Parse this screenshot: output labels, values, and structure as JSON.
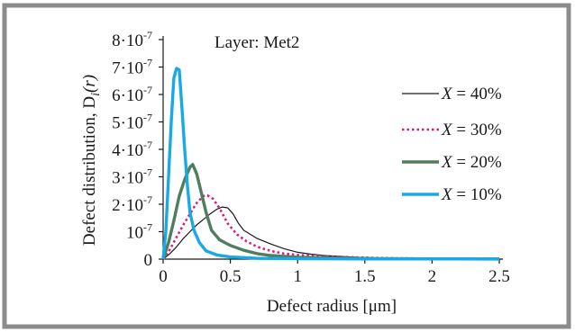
{
  "colors": {
    "frame": "#8c8c8c",
    "x40": "#1a1a1a",
    "x30": "#e0187a",
    "x20": "#4f7d5e",
    "x10": "#19a9e6"
  },
  "chart_data": {
    "type": "line",
    "annotation": "Layer: Met2",
    "ylabel_main": "Defect distribution, D",
    "ylabel_sub": "i",
    "ylabel_arg": "(r)",
    "xlabel": "Defect radius [μm]",
    "xlim": [
      0,
      2.5
    ],
    "ylim": [
      0,
      8e-07
    ],
    "grid": false,
    "legend_position": "right",
    "x_ticks": [
      {
        "v": 0,
        "label": "0"
      },
      {
        "v": 0.5,
        "label": "0.5"
      },
      {
        "v": 1,
        "label": "1"
      },
      {
        "v": 1.5,
        "label": "1.5"
      },
      {
        "v": 2,
        "label": "2"
      },
      {
        "v": 2.5,
        "label": "2.5"
      }
    ],
    "y_ticks": [
      {
        "v": 0,
        "base": "0",
        "exp": ""
      },
      {
        "v": 1e-07,
        "base": "10",
        "exp": "-7"
      },
      {
        "v": 2e-07,
        "base": "2·10",
        "exp": "-7"
      },
      {
        "v": 3e-07,
        "base": "3·10",
        "exp": "-7"
      },
      {
        "v": 4e-07,
        "base": "4·10",
        "exp": "-7"
      },
      {
        "v": 5e-07,
        "base": "5·10",
        "exp": "-7"
      },
      {
        "v": 6e-07,
        "base": "6·10",
        "exp": "-7"
      },
      {
        "v": 7e-07,
        "base": "7·10",
        "exp": "-7"
      },
      {
        "v": 8e-07,
        "base": "8·10",
        "exp": "-7"
      }
    ],
    "series": [
      {
        "name": "X = 40%",
        "legend_var": "X",
        "legend_val": "= 40%",
        "style": "solid",
        "width": 1.2,
        "color_key": "x40",
        "points": [
          [
            0,
            0
          ],
          [
            0.05,
            2e-08
          ],
          [
            0.1,
            4.5e-08
          ],
          [
            0.15,
            7.5e-08
          ],
          [
            0.2,
            1e-07
          ],
          [
            0.25,
            1.25e-07
          ],
          [
            0.3,
            1.45e-07
          ],
          [
            0.35,
            1.65e-07
          ],
          [
            0.4,
            1.82e-07
          ],
          [
            0.44,
            1.9e-07
          ],
          [
            0.48,
            1.87e-07
          ],
          [
            0.52,
            1.65e-07
          ],
          [
            0.56,
            1.3e-07
          ],
          [
            0.6,
            1.05e-07
          ],
          [
            0.65,
            9e-08
          ],
          [
            0.7,
            7.5e-08
          ],
          [
            0.8,
            5.5e-08
          ],
          [
            0.9,
            3.8e-08
          ],
          [
            1.0,
            2.5e-08
          ],
          [
            1.1,
            1.8e-08
          ],
          [
            1.2,
            1.3e-08
          ],
          [
            1.3,
            1e-08
          ],
          [
            1.4,
            8e-09
          ],
          [
            1.5,
            5e-09
          ],
          [
            1.7,
            3e-09
          ],
          [
            2.0,
            2e-09
          ],
          [
            2.5,
            1e-09
          ]
        ]
      },
      {
        "name": "X = 30%",
        "legend_var": "X",
        "legend_val": "= 30%",
        "style": "dotted",
        "width": 2.6,
        "color_key": "x30",
        "points": [
          [
            0,
            0
          ],
          [
            0.05,
            3.5e-08
          ],
          [
            0.1,
            8e-08
          ],
          [
            0.15,
            1.25e-07
          ],
          [
            0.2,
            1.65e-07
          ],
          [
            0.25,
            2.05e-07
          ],
          [
            0.3,
            2.3e-07
          ],
          [
            0.33,
            2.32e-07
          ],
          [
            0.37,
            2.2e-07
          ],
          [
            0.42,
            1.85e-07
          ],
          [
            0.48,
            1.3e-07
          ],
          [
            0.55,
            9e-08
          ],
          [
            0.62,
            6.5e-08
          ],
          [
            0.7,
            4.5e-08
          ],
          [
            0.8,
            3e-08
          ],
          [
            0.9,
            2e-08
          ],
          [
            1.0,
            1.5e-08
          ],
          [
            1.2,
            1e-08
          ],
          [
            1.4,
            7e-09
          ],
          [
            1.6,
            4e-09
          ],
          [
            2.0,
            2e-09
          ],
          [
            2.5,
            1e-09
          ]
        ]
      },
      {
        "name": "X = 20%",
        "legend_var": "X",
        "legend_val": "= 20%",
        "style": "solid",
        "width": 3.4,
        "color_key": "x20",
        "points": [
          [
            0,
            0
          ],
          [
            0.04,
            6e-08
          ],
          [
            0.08,
            1.4e-07
          ],
          [
            0.12,
            2.3e-07
          ],
          [
            0.16,
            2.9e-07
          ],
          [
            0.2,
            3.35e-07
          ],
          [
            0.22,
            3.45e-07
          ],
          [
            0.25,
            3.1e-07
          ],
          [
            0.28,
            2.5e-07
          ],
          [
            0.32,
            1.7e-07
          ],
          [
            0.36,
            1.05e-07
          ],
          [
            0.42,
            7e-08
          ],
          [
            0.5,
            5e-08
          ],
          [
            0.6,
            3.2e-08
          ],
          [
            0.7,
            2e-08
          ],
          [
            0.8,
            1.3e-08
          ],
          [
            1.0,
            7e-09
          ],
          [
            1.3,
            4e-09
          ],
          [
            1.6,
            2e-09
          ],
          [
            2.0,
            1e-09
          ],
          [
            2.5,
            5e-10
          ]
        ]
      },
      {
        "name": "X = 10%",
        "legend_var": "X",
        "legend_val": "= 10%",
        "style": "solid",
        "width": 3.4,
        "color_key": "x10",
        "points": [
          [
            0,
            0
          ],
          [
            0.02,
            1e-07
          ],
          [
            0.04,
            3e-07
          ],
          [
            0.06,
            5e-07
          ],
          [
            0.08,
            6.6e-07
          ],
          [
            0.1,
            6.95e-07
          ],
          [
            0.12,
            6.9e-07
          ],
          [
            0.14,
            5.5e-07
          ],
          [
            0.16,
            4e-07
          ],
          [
            0.18,
            2.7e-07
          ],
          [
            0.2,
            1.7e-07
          ],
          [
            0.23,
            1.05e-07
          ],
          [
            0.27,
            6e-08
          ],
          [
            0.32,
            3e-08
          ],
          [
            0.4,
            1.5e-08
          ],
          [
            0.5,
            8e-09
          ],
          [
            0.7,
            3e-09
          ],
          [
            1.0,
            1.5e-09
          ],
          [
            1.5,
            8e-10
          ],
          [
            2.0,
            5e-10
          ],
          [
            2.5,
            3e-10
          ]
        ]
      }
    ]
  }
}
